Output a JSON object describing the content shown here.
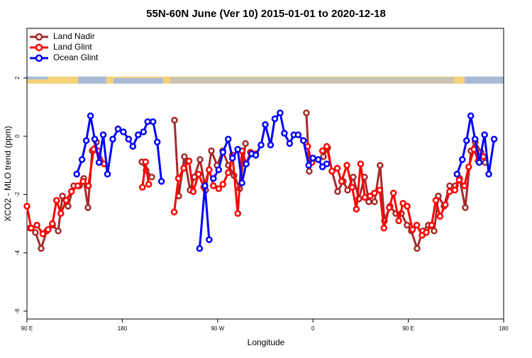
{
  "chart_data": {
    "type": "line",
    "title": "55N-60N June (Ver 10)   2015-01-01 to 2020-12-18",
    "x_label": "Longitude",
    "y_label": "XCO2 - MLO trend (ppm)",
    "xlim": [
      90,
      540
    ],
    "ylim": [
      -6.27,
      3.7
    ],
    "xticks": [
      {
        "value": 90,
        "label": "90 E"
      },
      180,
      {
        "value": 270,
        "label": "90 W"
      },
      {
        "value": 360,
        "label": "0"
      },
      {
        "value": 450,
        "label": "90 E"
      },
      {
        "value": 540,
        "label": "180"
      }
    ],
    "yticks": [
      -6,
      -4,
      -2,
      0,
      2
    ],
    "legend": "top-left",
    "series": [
      {
        "name": "Land Nadir",
        "color": "#a52a2a",
        "x": [
          92.7,
          98,
          103.4,
          108.7,
          114.1,
          119.5,
          123.5,
          128.8,
          134.2,
          139.6,
          143.6,
          147.6,
          151.6,
          155.6,
          null,
          198.5,
          202.5,
          207.8,
          null,
          229.3,
          233.3,
          238.6,
          244,
          248,
          253.4,
          258.7,
          264.1,
          269.5,
          274.8,
          280.2,
          285.5,
          290.9,
          296.3,
          null,
          353.8,
          356.5,
          null,
          369.9,
          373.9,
          377.9,
          383.3,
          388.6,
          392.7,
          398,
          403.4,
          408.7,
          412.7,
          418.1,
          423.4,
          427.5,
          432.8,
          438.2,
          443.5,
          448.9,
          452.9,
          458.3,
          463.6,
          469,
          474.4,
          478.4,
          483.7,
          489.1,
          494.4,
          498.5,
          503.8,
          509.2,
          513.2,
          518.6,
          522.6
        ],
        "values": [
          -3.15,
          -3.3,
          -3.85,
          -3.25,
          -3.05,
          -3.25,
          -2.05,
          -2.4,
          -1.7,
          -1.7,
          -1.45,
          -2.45,
          -0.5,
          -0.2,
          null,
          -0.88,
          -1.17,
          -1.4,
          null,
          0.55,
          -2.05,
          -0.7,
          -1.85,
          -1.4,
          -0.8,
          -1.85,
          -0.5,
          -1,
          -0.5,
          -1,
          -1.35,
          -1.8,
          -0.25,
          null,
          0.8,
          -1.2,
          null,
          -0.7,
          -0.4,
          -1.2,
          -1.9,
          -1.55,
          -1.85,
          -1.4,
          -2.15,
          -1.4,
          -2.25,
          -2.25,
          -1,
          -2.9,
          -2.4,
          -2.65,
          -2.65,
          -3.05,
          -3.25,
          -3.85,
          -3.25,
          -3.05,
          -3.25,
          -2.05,
          -2.4,
          -1.7,
          -1.7,
          -1.45,
          -2.45,
          -0.5,
          -0.2,
          -0.55,
          -0.9
        ]
      },
      {
        "name": "Land Glint",
        "color": "#ff0000",
        "x": [
          90,
          94,
          99.4,
          105,
          110,
          114,
          118,
          122,
          127,
          132,
          138,
          143,
          148,
          153,
          157,
          163,
          null,
          199,
          202,
          205,
          null,
          229,
          233,
          238,
          243,
          247,
          252,
          257,
          262,
          266,
          271,
          275,
          280,
          284,
          289,
          293,
          297,
          301,
          306,
          null,
          355,
          359,
          null,
          369,
          373,
          378,
          383,
          387,
          392,
          397,
          401,
          405,
          409,
          414,
          418,
          423,
          427,
          432,
          436,
          441,
          445,
          449,
          454,
          458,
          463,
          467,
          472,
          476,
          480,
          485,
          489,
          494,
          498,
          503,
          507,
          512,
          516,
          521
        ],
        "values": [
          -2.4,
          -3.15,
          -3.05,
          -3.35,
          -3.2,
          -3.0,
          -2.2,
          -2.65,
          -2.2,
          -1.9,
          -1.7,
          -1.55,
          -1.7,
          -0.45,
          -0.5,
          -0.95,
          null,
          -1.75,
          -0.88,
          -1.65,
          null,
          -2.6,
          -1.45,
          -1.1,
          -0.85,
          -1.9,
          -1.3,
          -1.75,
          -1.15,
          -1.7,
          -1.8,
          -1.65,
          -1.25,
          -0.65,
          -2.65,
          -0.5,
          -0.95,
          -0.55,
          -0.6,
          null,
          -0.35,
          -0.9,
          null,
          -0.5,
          -0.35,
          -1.2,
          -1.1,
          -1.55,
          -1.0,
          -1.75,
          -2.5,
          -0.95,
          -2.1,
          -2.05,
          -1.95,
          -1.85,
          -3.15,
          -2.45,
          -1.95,
          -2.9,
          -2.3,
          -2.4,
          -3.2,
          -3.05,
          -3.4,
          -3.3,
          -3.05,
          -2.2,
          -2.75,
          -2.35,
          -1.9,
          -1.85,
          -1.5,
          -1.7,
          -1.05,
          -0.45,
          -0.85,
          -0.7
        ]
      },
      {
        "name": "Ocean Glint",
        "color": "#0000ff",
        "x": [
          137,
          142,
          146,
          150,
          154,
          158,
          162,
          166,
          171,
          176,
          181,
          186,
          190,
          195,
          200,
          204,
          209,
          213,
          217,
          null,
          253,
          258,
          262,
          null,
          266,
          271,
          275,
          280,
          284,
          289,
          293,
          297,
          302,
          306,
          311,
          315,
          320,
          324,
          329,
          333,
          338,
          342,
          346,
          351,
          356,
          360,
          365,
          369,
          373,
          null,
          496,
          501,
          505,
          509,
          513,
          517,
          522,
          526,
          531
        ],
        "values": [
          -1.3,
          -0.8,
          -0.15,
          0.7,
          -0.1,
          -0.9,
          0.05,
          -1.3,
          -0.1,
          0.25,
          0.15,
          -0.1,
          -0.35,
          0.05,
          0.15,
          0.5,
          0.5,
          -0.2,
          -1.55,
          null,
          -3.85,
          -1.7,
          -3.55,
          null,
          -1.45,
          -1.15,
          -0.55,
          -0.1,
          -0.75,
          -0.45,
          -1.6,
          -0.95,
          -0.6,
          -0.65,
          -0.3,
          0.4,
          -0.3,
          0.6,
          0.8,
          0.1,
          -0.25,
          0.05,
          0.05,
          -0.15,
          -1.0,
          -0.75,
          -0.8,
          -1.05,
          -0.95,
          null,
          -1.3,
          -0.8,
          -0.15,
          0.7,
          -0.1,
          -0.9,
          0.05,
          -1.3,
          -0.1
        ]
      }
    ]
  }
}
